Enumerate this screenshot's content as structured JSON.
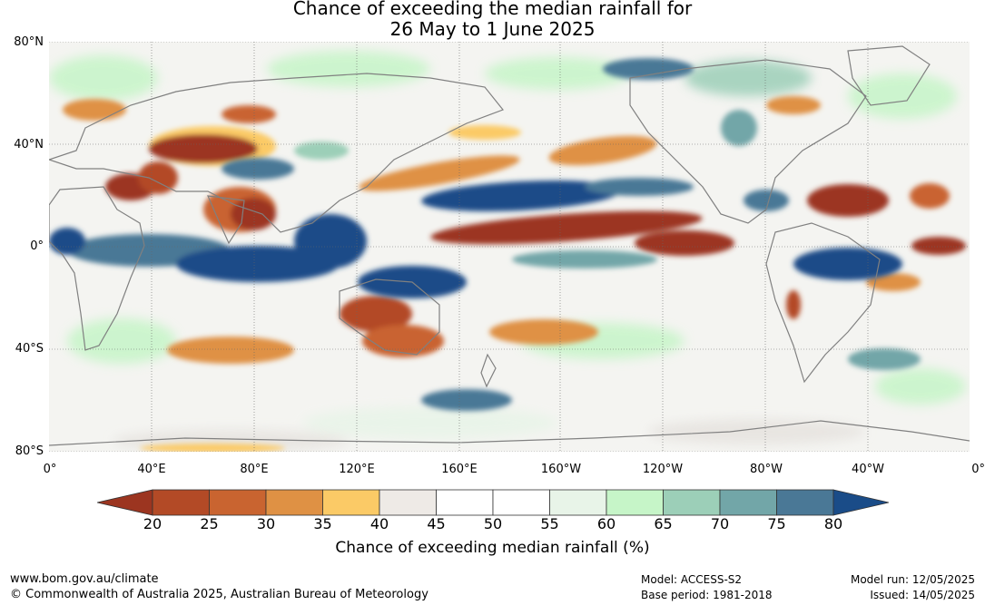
{
  "title": {
    "line1": "Chance of exceeding the median rainfall for",
    "line2": "26 May to 1 June 2025"
  },
  "map": {
    "lat_labels": [
      "80°N",
      "40°N",
      "0°",
      "40°S",
      "80°S"
    ],
    "lon_labels": [
      "0°",
      "40°E",
      "80°E",
      "120°E",
      "160°E",
      "160°W",
      "120°W",
      "80°W",
      "40°W",
      "0°"
    ]
  },
  "colorbar": {
    "ticks": [
      "20",
      "25",
      "30",
      "35",
      "40",
      "45",
      "50",
      "55",
      "60",
      "65",
      "70",
      "75",
      "80"
    ],
    "colors": [
      "#9c3520",
      "#b34a26",
      "#c96430",
      "#df9144",
      "#fbca66",
      "#eeeae6",
      "#ffffff",
      "#ffffff",
      "#e8f4e8",
      "#c6f5c8",
      "#9ccfb8",
      "#72a6a8",
      "#4a7896",
      "#1a4c88"
    ],
    "title": "Chance of exceeding median rainfall (%)"
  },
  "footer": {
    "website": "www.bom.gov.au/climate",
    "copyright": "© Commonwealth of Australia 2025, Australian Bureau of Meteorology",
    "model": "Model: ACCESS-S2",
    "base_period": "Base period: 1981-2018",
    "model_run": "Model run: 12/05/2025",
    "issued": "Issued: 14/05/2025"
  }
}
